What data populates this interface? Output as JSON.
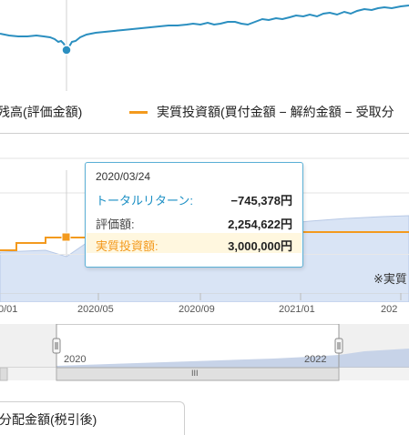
{
  "legend": {
    "market_value_label": "残高(評価金額)",
    "invested_label": "実質投資額(買付金額 − 解約金額 − 受取分",
    "invested_color": "#f39a1e",
    "market_color": "#2b8fc0"
  },
  "tooltip": {
    "date": "2020/03/24",
    "total_return_label": "トータルリターン:",
    "total_return_value": "−745,378円",
    "valuation_label": "評価額:",
    "valuation_value": "2,254,622円",
    "invested_label": "実質投資額:",
    "invested_value": "3,000,000円"
  },
  "note": "※実質",
  "x_ticks": [
    "0/01",
    "2020/05",
    "2020/09",
    "2021/01",
    "202"
  ],
  "navigator": {
    "year_labels": [
      "2020",
      "2022"
    ],
    "handle_grip": "III"
  },
  "bottom_tab_label": "分配金額(税引後)",
  "chart_data": {
    "type": "line",
    "hovered_point": {
      "date": "2020/03/24",
      "market_value": 2254622,
      "invested": 3000000,
      "total_return": -745378
    },
    "series": [
      {
        "name": "残高(評価金額)",
        "color": "#2b8fc0"
      },
      {
        "name": "実質投資額(買付金額 − 解約金額 − 受取分",
        "color": "#f39a1e"
      }
    ]
  }
}
